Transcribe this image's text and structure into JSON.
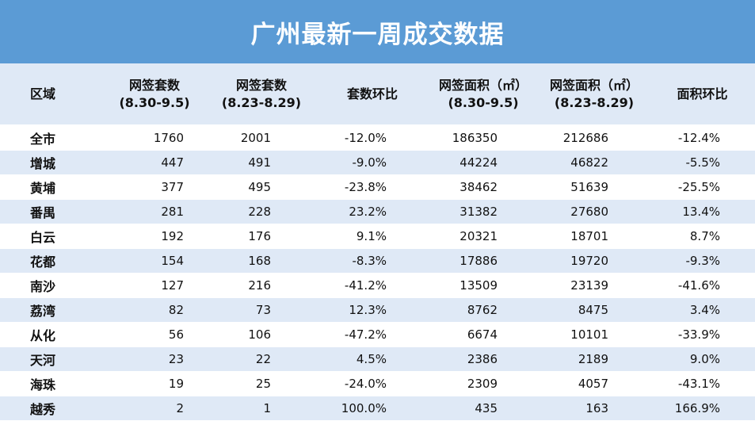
{
  "title": "广州最新一周成交数据",
  "headers": {
    "district": "区域",
    "sets_cur": [
      "网签套数",
      "(8.30-9.5)"
    ],
    "sets_prev": [
      "网签套数",
      "(8.23-8.29)"
    ],
    "sets_ratio": "套数环比",
    "area_cur": [
      "网签面积（㎡）",
      "(8.30-9.5)"
    ],
    "area_prev": [
      "网签面积（㎡）",
      "(8.23-8.29)"
    ],
    "area_ratio": "面积环比"
  },
  "rows": [
    [
      "全市",
      "1760",
      "2001",
      "-12.0%",
      "186350",
      "212686",
      "-12.4%"
    ],
    [
      "增城",
      "447",
      "491",
      "-9.0%",
      "44224",
      "46822",
      "-5.5%"
    ],
    [
      "黄埔",
      "377",
      "495",
      "-23.8%",
      "38462",
      "51639",
      "-25.5%"
    ],
    [
      "番禺",
      "281",
      "228",
      "23.2%",
      "31382",
      "27680",
      "13.4%"
    ],
    [
      "白云",
      "192",
      "176",
      "9.1%",
      "20321",
      "18701",
      "8.7%"
    ],
    [
      "花都",
      "154",
      "168",
      "-8.3%",
      "17886",
      "19720",
      "-9.3%"
    ],
    [
      "南沙",
      "127",
      "216",
      "-41.2%",
      "13509",
      "23139",
      "-41.6%"
    ],
    [
      "荔湾",
      "82",
      "73",
      "12.3%",
      "8762",
      "8475",
      "3.4%"
    ],
    [
      "从化",
      "56",
      "106",
      "-47.2%",
      "6674",
      "10101",
      "-33.9%"
    ],
    [
      "天河",
      "23",
      "22",
      "4.5%",
      "2386",
      "2189",
      "9.0%"
    ],
    [
      "海珠",
      "19",
      "25",
      "-24.0%",
      "2309",
      "4057",
      "-43.1%"
    ],
    [
      "越秀",
      "2",
      "1",
      "100.0%",
      "435",
      "163",
      "166.9%"
    ]
  ]
}
